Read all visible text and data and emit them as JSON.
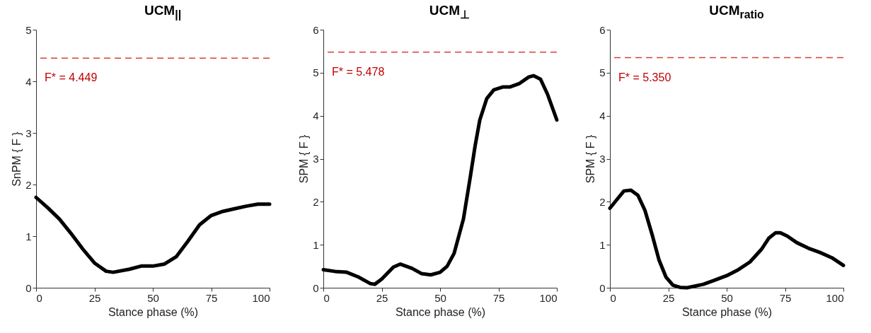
{
  "chart_data": [
    {
      "type": "line",
      "title": "UCM$_{||}$",
      "xlabel": "Stance phase (%)",
      "ylabel": "SnPM { F }",
      "xlim": [
        0,
        100
      ],
      "xticks": [
        0,
        25,
        50,
        75,
        100
      ],
      "ylim": [
        0,
        5
      ],
      "yticks": [
        0,
        1,
        2,
        3,
        4,
        5
      ],
      "grid": false,
      "x": [
        0,
        5,
        10,
        15,
        20,
        25,
        30,
        33,
        40,
        45,
        50,
        55,
        60,
        65,
        70,
        75,
        80,
        85,
        90,
        95,
        100
      ],
      "series": [
        {
          "color": "#000000",
          "values": [
            1.75,
            1.55,
            1.33,
            1.05,
            0.75,
            0.48,
            0.32,
            0.3,
            0.36,
            0.42,
            0.42,
            0.46,
            0.6,
            0.9,
            1.22,
            1.4,
            1.48,
            1.53,
            1.58,
            1.62,
            1.62
          ]
        }
      ],
      "ref_lines": [
        {
          "axis": "y",
          "value": 4.449,
          "label": "F* = 4.449",
          "color": "#d9403a",
          "line_style": "dashed"
        }
      ]
    },
    {
      "type": "line",
      "title": "UCM$_{⊥}$",
      "xlabel": "Stance phase (%)",
      "ylabel": "SPM { F }",
      "xlim": [
        0,
        100
      ],
      "xticks": [
        0,
        25,
        50,
        75,
        100
      ],
      "ylim": [
        0,
        6
      ],
      "yticks": [
        0,
        1,
        2,
        3,
        4,
        5,
        6
      ],
      "grid": false,
      "x": [
        0,
        5,
        10,
        15,
        20,
        22,
        25,
        30,
        33,
        38,
        42,
        46,
        50,
        53,
        56,
        60,
        63,
        65,
        67,
        70,
        73,
        77,
        80,
        84,
        88,
        90,
        93,
        96,
        100
      ],
      "series": [
        {
          "color": "#000000",
          "values": [
            0.42,
            0.38,
            0.36,
            0.25,
            0.1,
            0.08,
            0.2,
            0.48,
            0.55,
            0.45,
            0.33,
            0.3,
            0.36,
            0.5,
            0.8,
            1.6,
            2.6,
            3.3,
            3.9,
            4.4,
            4.6,
            4.67,
            4.67,
            4.75,
            4.9,
            4.93,
            4.85,
            4.5,
            3.9
          ]
        }
      ],
      "ref_lines": [
        {
          "axis": "y",
          "value": 5.478,
          "label": "F* = 5.478",
          "color": "#d9403a",
          "line_style": "dashed"
        }
      ]
    },
    {
      "type": "line",
      "title": "UCM$_{ratio}$",
      "xlabel": "Stance phase (%)",
      "ylabel": "SPM { F }",
      "xlim": [
        0,
        100
      ],
      "xticks": [
        0,
        25,
        50,
        75,
        100
      ],
      "ylim": [
        0,
        6
      ],
      "yticks": [
        0,
        1,
        2,
        3,
        4,
        5,
        6
      ],
      "grid": false,
      "x": [
        0,
        3,
        6,
        9,
        12,
        15,
        18,
        21,
        24,
        27,
        30,
        33,
        40,
        45,
        50,
        55,
        60,
        65,
        68,
        71,
        73,
        76,
        80,
        85,
        90,
        95,
        100
      ],
      "series": [
        {
          "color": "#000000",
          "values": [
            1.85,
            2.05,
            2.25,
            2.27,
            2.15,
            1.8,
            1.25,
            0.65,
            0.25,
            0.06,
            0.01,
            0.0,
            0.08,
            0.18,
            0.28,
            0.42,
            0.6,
            0.9,
            1.15,
            1.28,
            1.28,
            1.2,
            1.05,
            0.92,
            0.82,
            0.7,
            0.52
          ]
        }
      ],
      "ref_lines": [
        {
          "axis": "y",
          "value": 5.35,
          "label": "F* = 5.350",
          "color": "#d9403a",
          "line_style": "dashed"
        }
      ]
    }
  ]
}
